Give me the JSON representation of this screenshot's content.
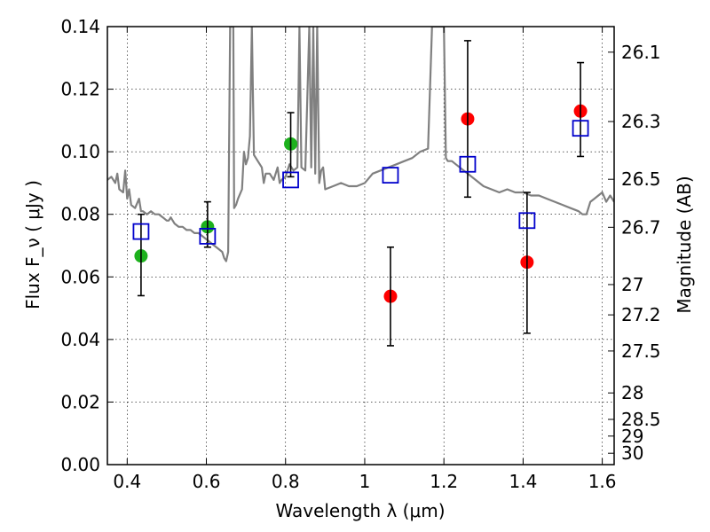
{
  "chart_data": {
    "type": "scatter",
    "xlabel": "Wavelength  λ (μm)",
    "ylabel": "Flux  F_ν  ( μJy )",
    "y2label": "Magnitude (AB)",
    "xlim": [
      0.35,
      1.63
    ],
    "ylim": [
      0.0,
      0.14
    ],
    "grid": true,
    "x_ticks": [
      0.4,
      0.6,
      0.8,
      1.0,
      1.2,
      1.4,
      1.6
    ],
    "x_tick_labels": [
      "0.4",
      "0.6",
      "0.8",
      "1",
      "1.2",
      "1.4",
      "1.6"
    ],
    "y_ticks": [
      0.0,
      0.02,
      0.04,
      0.06,
      0.08,
      0.1,
      0.12,
      0.14
    ],
    "y_tick_labels": [
      "0.00",
      "0.02",
      "0.04",
      "0.06",
      "0.08",
      "0.10",
      "0.12",
      "0.14"
    ],
    "y2_ticks": [
      "26.1",
      "26.3",
      "26.5",
      "26.7",
      "27",
      "27.2",
      "27.5",
      "28",
      "28.5",
      "29",
      "30"
    ],
    "series": [
      {
        "name": "model spectrum",
        "kind": "line",
        "color": "#808080",
        "x": [
          0.35,
          0.36,
          0.37,
          0.375,
          0.38,
          0.39,
          0.395,
          0.4,
          0.405,
          0.41,
          0.42,
          0.43,
          0.435,
          0.44,
          0.45,
          0.46,
          0.47,
          0.48,
          0.49,
          0.5,
          0.505,
          0.51,
          0.52,
          0.53,
          0.54,
          0.55,
          0.56,
          0.57,
          0.58,
          0.59,
          0.6,
          0.61,
          0.62,
          0.63,
          0.64,
          0.645,
          0.65,
          0.655,
          0.66,
          0.662,
          0.664,
          0.666,
          0.668,
          0.67,
          0.675,
          0.68,
          0.69,
          0.695,
          0.7,
          0.705,
          0.71,
          0.715,
          0.72,
          0.73,
          0.74,
          0.745,
          0.75,
          0.76,
          0.77,
          0.78,
          0.785,
          0.79,
          0.8,
          0.81,
          0.82,
          0.83,
          0.835,
          0.84,
          0.85,
          0.86,
          0.865,
          0.87,
          0.875,
          0.88,
          0.885,
          0.89,
          0.895,
          0.9,
          0.92,
          0.94,
          0.96,
          0.98,
          1.0,
          1.02,
          1.04,
          1.06,
          1.08,
          1.1,
          1.12,
          1.14,
          1.16,
          1.17,
          1.18,
          1.185,
          1.19,
          1.195,
          1.2,
          1.205,
          1.21,
          1.22,
          1.24,
          1.26,
          1.28,
          1.3,
          1.32,
          1.34,
          1.36,
          1.38,
          1.4,
          1.42,
          1.44,
          1.46,
          1.48,
          1.5,
          1.52,
          1.54,
          1.55,
          1.56,
          1.57,
          1.58,
          1.59,
          1.6,
          1.61,
          1.62,
          1.63
        ],
        "y": [
          0.091,
          0.092,
          0.09,
          0.093,
          0.088,
          0.087,
          0.094,
          0.085,
          0.088,
          0.083,
          0.082,
          0.085,
          0.081,
          0.081,
          0.08,
          0.081,
          0.08,
          0.08,
          0.079,
          0.078,
          0.078,
          0.079,
          0.077,
          0.076,
          0.076,
          0.075,
          0.075,
          0.074,
          0.074,
          0.073,
          0.072,
          0.071,
          0.07,
          0.069,
          0.068,
          0.066,
          0.065,
          0.068,
          0.14,
          0.14,
          0.14,
          0.14,
          0.14,
          0.082,
          0.083,
          0.085,
          0.088,
          0.1,
          0.096,
          0.098,
          0.105,
          0.14,
          0.099,
          0.097,
          0.095,
          0.09,
          0.093,
          0.093,
          0.091,
          0.095,
          0.09,
          0.091,
          0.092,
          0.096,
          0.094,
          0.095,
          0.14,
          0.095,
          0.094,
          0.14,
          0.095,
          0.14,
          0.093,
          0.14,
          0.09,
          0.094,
          0.095,
          0.088,
          0.089,
          0.09,
          0.089,
          0.089,
          0.09,
          0.093,
          0.094,
          0.095,
          0.096,
          0.097,
          0.098,
          0.1,
          0.101,
          0.14,
          0.14,
          0.14,
          0.14,
          0.14,
          0.14,
          0.098,
          0.097,
          0.097,
          0.095,
          0.093,
          0.091,
          0.089,
          0.088,
          0.087,
          0.088,
          0.087,
          0.087,
          0.086,
          0.086,
          0.085,
          0.084,
          0.083,
          0.082,
          0.081,
          0.08,
          0.08,
          0.084,
          0.085,
          0.086,
          0.087,
          0.084,
          0.086,
          0.084
        ]
      },
      {
        "name": "green points",
        "kind": "circle",
        "color": "#1db11d",
        "x": [
          0.435,
          0.603,
          0.813
        ],
        "y": [
          0.0667,
          0.076,
          0.1025
        ]
      },
      {
        "name": "red points",
        "kind": "circle",
        "color": "#ff0000",
        "x": [
          1.065,
          1.26,
          1.41,
          1.545
        ],
        "y": [
          0.0538,
          0.1105,
          0.0647,
          0.113
        ]
      },
      {
        "name": "error bars",
        "kind": "errorbar",
        "color": "#000000",
        "x": [
          0.435,
          0.603,
          0.813,
          1.065,
          1.26,
          1.41,
          1.545
        ],
        "low": [
          0.054,
          0.0695,
          0.092,
          0.038,
          0.0855,
          0.042,
          0.0985
        ],
        "high": [
          0.08,
          0.084,
          0.1125,
          0.0695,
          0.1355,
          0.087,
          0.1285
        ]
      },
      {
        "name": "model photometry",
        "kind": "square",
        "color": "#0000cc",
        "x": [
          0.435,
          0.603,
          0.813,
          1.065,
          1.26,
          1.41,
          1.545
        ],
        "y": [
          0.0745,
          0.073,
          0.091,
          0.0925,
          0.096,
          0.078,
          0.1075
        ]
      }
    ]
  }
}
